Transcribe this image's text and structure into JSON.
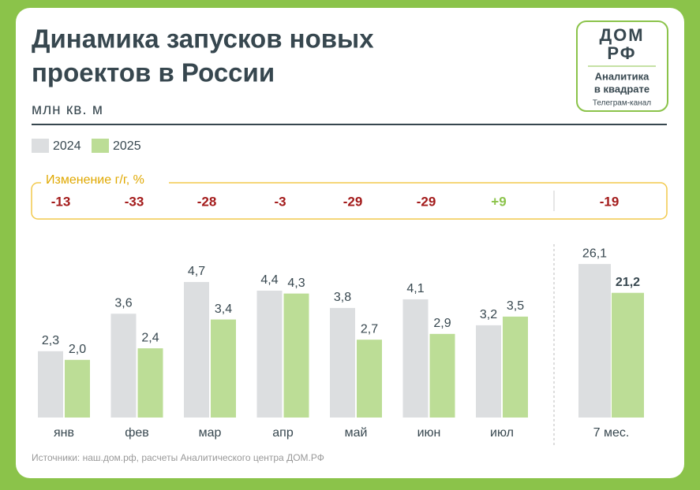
{
  "title_lines": [
    "Динамика запусков новых",
    "проектов в России"
  ],
  "subtitle": "млн кв. м",
  "logo": {
    "brand_top": "ДОМ",
    "brand_bottom": "РФ",
    "line1": "Аналитика",
    "line2": "в квадрате",
    "caption": "Телеграм-канал"
  },
  "yoy": {
    "label": "Изменение г/г, %",
    "values": [
      -13,
      -33,
      -28,
      -3,
      -29,
      -29,
      9,
      -19
    ],
    "value_labels": [
      "-13",
      "-33",
      "-28",
      "-3",
      "-29",
      "-29",
      "+9",
      "-19"
    ],
    "negative_color": "#a31a1a",
    "positive_color": "#8bc34a"
  },
  "source": "Источники: наш.дом.рф, расчеты Аналитического центра ДОМ.РФ",
  "chart_data": [
    {
      "type": "bar",
      "categories": [
        "янв",
        "фев",
        "мар",
        "апр",
        "май",
        "июн",
        "июл"
      ],
      "series": [
        {
          "name": "2024",
          "color": "#dcdee0",
          "values": [
            2.3,
            3.6,
            4.7,
            4.4,
            3.8,
            4.1,
            3.2
          ],
          "value_labels": [
            "2,3",
            "3,6",
            "4,7",
            "4,4",
            "3,8",
            "4,1",
            "3,2"
          ]
        },
        {
          "name": "2025",
          "color": "#bcdd96",
          "values": [
            2.0,
            2.4,
            3.4,
            4.3,
            2.7,
            2.9,
            3.5
          ],
          "value_labels": [
            "2,0",
            "2,4",
            "3,4",
            "4,3",
            "2,7",
            "2,9",
            "3,5"
          ]
        }
      ],
      "ylim": [
        0,
        5
      ]
    },
    {
      "type": "bar",
      "categories": [
        "7 мес."
      ],
      "series": [
        {
          "color": "#dcdee0",
          "values": [
            26.1
          ],
          "value_labels": [
            "26,1"
          ]
        },
        {
          "color": "#bcdd96",
          "values": [
            21.2
          ],
          "value_labels": [
            "21,2"
          ]
        }
      ],
      "ylim": [
        0,
        30
      ],
      "highlight_series": 1
    }
  ]
}
